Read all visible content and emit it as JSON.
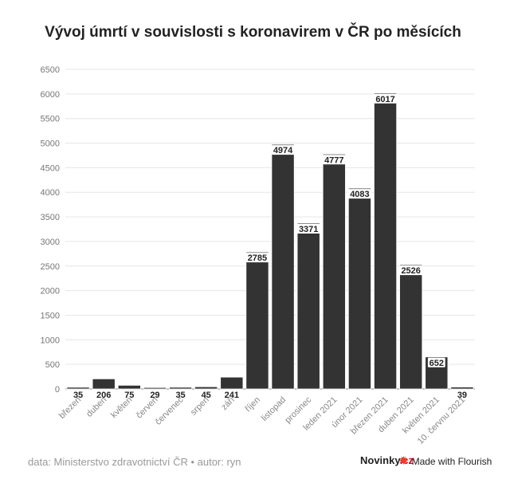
{
  "chart_data": {
    "type": "bar",
    "title": "Vývoj úmrtí v souvislosti s koronavirem v ČR po měsících",
    "categories": [
      "březen",
      "duben",
      "květen",
      "červen",
      "červenec",
      "srpen",
      "září",
      "říjen",
      "listopad",
      "prosinec",
      "leden 2021",
      "únor 2021",
      "březen 2021",
      "duben 2021",
      "květen 2021",
      "10. červnu 2021"
    ],
    "values": [
      35,
      206,
      75,
      29,
      35,
      45,
      241,
      2785,
      4974,
      3371,
      4777,
      4083,
      6017,
      2526,
      652,
      39
    ],
    "yticks": [
      0,
      500,
      1000,
      1500,
      2000,
      2500,
      3000,
      3500,
      4000,
      4500,
      5000,
      5500,
      6000,
      6500
    ],
    "ylim": [
      0,
      6500
    ],
    "bar_color": "#333333",
    "grid": true,
    "xlabel": "",
    "ylabel": ""
  },
  "footer": {
    "source": "data: Ministerstvo zdravotnictví ČR • autor: ryn",
    "brand_main": "Novinky",
    "brand_suffix": ".cz",
    "flourish": "Made with Flourish"
  }
}
